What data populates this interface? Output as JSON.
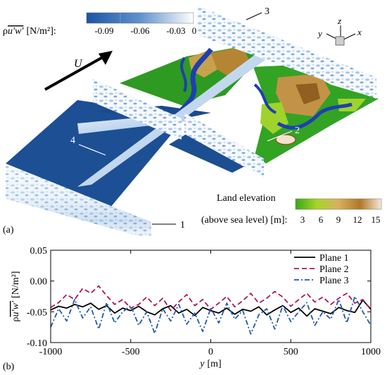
{
  "panel_a": {
    "label": "(a)",
    "flow_label": "U",
    "colorbar_stress": {
      "title_prefix": "ρ",
      "title_var": "u′w′",
      "title_units": "[N/m²]:",
      "ticks": [
        "-0.09",
        "-0.06",
        "-0.03",
        "0"
      ],
      "colors": [
        "#1f57a8",
        "#ffffff"
      ]
    },
    "colorbar_elevation": {
      "title_line1": "Land elevation",
      "title_line2": "(above sea level) [m]:",
      "ticks": [
        "3",
        "6",
        "9",
        "12",
        "15"
      ],
      "colors": [
        "#3aa81a",
        "#a8d428",
        "#d8b060",
        "#b07828",
        "#f4e8d8"
      ]
    },
    "plane_labels": [
      "1",
      "2",
      "3",
      "4"
    ],
    "axes_triad": {
      "z": "z",
      "y": "y",
      "x": "x"
    }
  },
  "panel_b": {
    "label": "(b)"
  },
  "chart_data": {
    "type": "line",
    "ylabel_prefix": "ρ",
    "ylabel_var": "u′w′",
    "ylabel_units": "[N/m²]",
    "xlabel_var": "y",
    "xlabel_units": "[m]",
    "xlim": [
      -1000,
      1000
    ],
    "ylim": [
      -0.1,
      0.05
    ],
    "xticks": [
      -1000,
      -500,
      0,
      500,
      1000
    ],
    "yticks": [
      -0.1,
      -0.05,
      0.0,
      0.05
    ],
    "ytick_labels": [
      "-0.10",
      "-0.05",
      "0.00",
      "0.05"
    ],
    "legend_position": "top-right",
    "x": [
      -1000,
      -950,
      -900,
      -850,
      -800,
      -750,
      -700,
      -650,
      -600,
      -550,
      -500,
      -450,
      -400,
      -350,
      -300,
      -250,
      -200,
      -150,
      -100,
      -50,
      0,
      50,
      100,
      150,
      200,
      250,
      300,
      350,
      400,
      450,
      500,
      550,
      600,
      650,
      700,
      750,
      800,
      850,
      900,
      950,
      1000
    ],
    "series": [
      {
        "name": "Plane 1",
        "color": "#000000",
        "dash": "solid",
        "values": [
          -0.047,
          -0.041,
          -0.044,
          -0.038,
          -0.042,
          -0.036,
          -0.046,
          -0.04,
          -0.052,
          -0.044,
          -0.048,
          -0.041,
          -0.05,
          -0.055,
          -0.045,
          -0.04,
          -0.052,
          -0.046,
          -0.056,
          -0.043,
          -0.048,
          -0.052,
          -0.044,
          -0.054,
          -0.046,
          -0.049,
          -0.042,
          -0.055,
          -0.047,
          -0.04,
          -0.051,
          -0.044,
          -0.057,
          -0.045,
          -0.049,
          -0.053,
          -0.043,
          -0.048,
          -0.051,
          -0.031,
          -0.046
        ]
      },
      {
        "name": "Plane 2",
        "color": "#b0145a",
        "dash": "dashed",
        "values": [
          -0.043,
          -0.035,
          -0.022,
          -0.03,
          -0.012,
          -0.02,
          -0.008,
          -0.024,
          -0.038,
          -0.03,
          -0.044,
          -0.038,
          -0.026,
          -0.04,
          -0.028,
          -0.048,
          -0.034,
          -0.022,
          -0.04,
          -0.03,
          -0.046,
          -0.036,
          -0.025,
          -0.042,
          -0.032,
          -0.02,
          -0.036,
          -0.028,
          -0.017,
          -0.026,
          -0.041,
          -0.03,
          -0.02,
          -0.034,
          -0.026,
          -0.038,
          -0.028,
          -0.02,
          -0.036,
          -0.03,
          -0.046
        ]
      },
      {
        "name": "Plane 3",
        "color": "#1f5aa8",
        "dash": "dashdot",
        "values": [
          -0.075,
          -0.045,
          -0.065,
          -0.03,
          -0.06,
          -0.042,
          -0.078,
          -0.035,
          -0.068,
          -0.05,
          -0.04,
          -0.072,
          -0.05,
          -0.085,
          -0.045,
          -0.065,
          -0.038,
          -0.07,
          -0.052,
          -0.082,
          -0.044,
          -0.068,
          -0.036,
          -0.062,
          -0.048,
          -0.086,
          -0.055,
          -0.045,
          -0.078,
          -0.04,
          -0.066,
          -0.05,
          -0.035,
          -0.072,
          -0.05,
          -0.062,
          -0.03,
          -0.068,
          -0.025,
          -0.05,
          -0.072
        ]
      }
    ]
  }
}
